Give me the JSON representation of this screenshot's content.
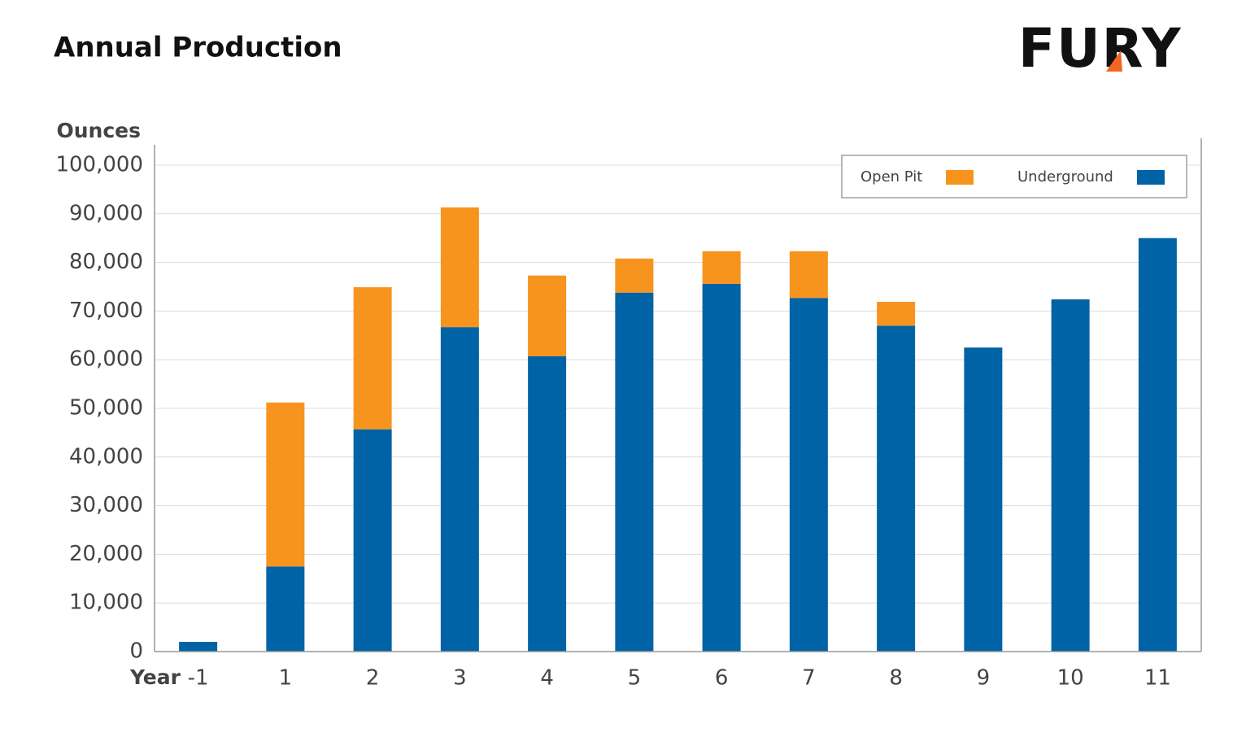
{
  "logo": "FURY",
  "chart_data": {
    "type": "stacked-bar",
    "title": "Annual Production",
    "y_label": "Ounces",
    "x_label": "Year",
    "categories": [
      "-1",
      "1",
      "2",
      "3",
      "4",
      "5",
      "6",
      "7",
      "8",
      "9",
      "10",
      "11"
    ],
    "series": [
      {
        "name": "Underground",
        "color": "#0063a5",
        "values": [
          2000,
          17500,
          45700,
          66700,
          60700,
          73800,
          75600,
          72700,
          67000,
          62500,
          72400,
          85000
        ]
      },
      {
        "name": "Open Pit",
        "color": "#f7941d",
        "values": [
          0,
          33700,
          29200,
          24600,
          16600,
          7000,
          6700,
          9600,
          4900,
          0,
          0,
          0
        ]
      }
    ],
    "ylim": [
      0,
      100000
    ],
    "yticks": [
      0,
      {
        "value": 10000,
        "label": "10,000"
      },
      {
        "value": 20000,
        "label": "20,000"
      },
      {
        "value": 30000,
        "label": "30,000"
      },
      {
        "value": 40000,
        "label": "40,000"
      },
      {
        "value": 50000,
        "label": "50,000"
      },
      {
        "value": 60000,
        "label": "60,000"
      },
      {
        "value": 70000,
        "label": "70,000"
      },
      {
        "value": 80000,
        "label": "80,000"
      },
      {
        "value": 90000,
        "label": "90,000"
      },
      {
        "value": 100000,
        "label": "100,000"
      }
    ],
    "grid": true,
    "legend": "top-right"
  }
}
